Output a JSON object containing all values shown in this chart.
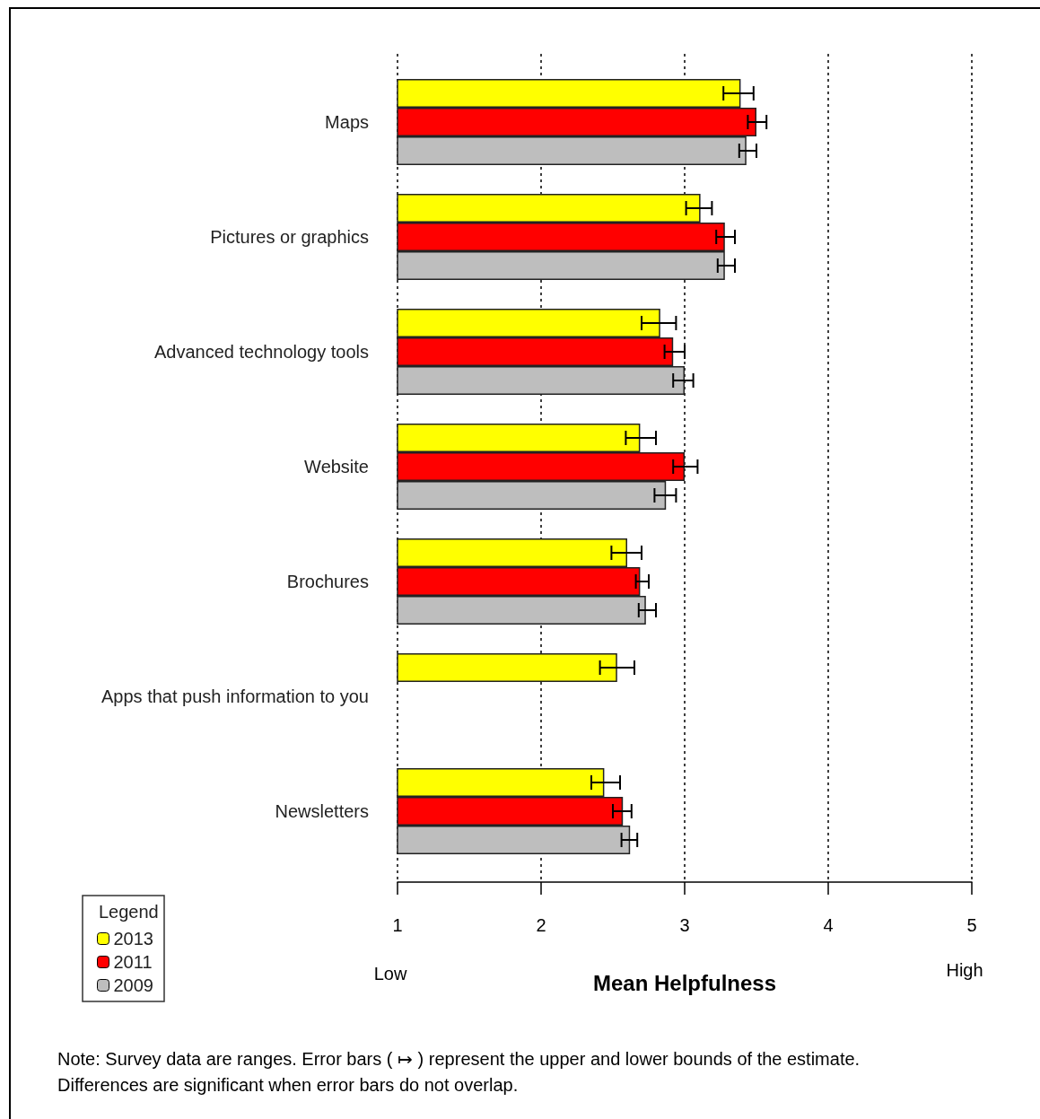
{
  "chart_data": {
    "type": "bar",
    "orientation": "horizontal",
    "xlabel": "Mean Helpfulness",
    "legend_title": "Legend",
    "legend": "bottom left",
    "grid": "x",
    "categories": [
      "Maps",
      "Pictures or graphics",
      "Advanced technology tools",
      "Website",
      "Brochures",
      "Apps that push information to you",
      "Newsletters"
    ],
    "xlim": [
      1,
      5
    ],
    "xticks": [
      1,
      2,
      3,
      4,
      5
    ],
    "series": [
      {
        "name": "2013",
        "color": "#ffff00",
        "values": [
          3.39,
          3.11,
          2.83,
          2.69,
          2.6,
          2.53,
          2.44
        ],
        "errors": [
          [
            3.27,
            3.48
          ],
          [
            3.01,
            3.19
          ],
          [
            2.7,
            2.94
          ],
          [
            2.59,
            2.8
          ],
          [
            2.49,
            2.7
          ],
          [
            2.41,
            2.65
          ],
          [
            2.35,
            2.55
          ]
        ]
      },
      {
        "name": "2011",
        "color": "#ff0000",
        "values": [
          3.5,
          3.28,
          2.92,
          3.0,
          2.69,
          null,
          2.57
        ],
        "errors": [
          [
            3.44,
            3.57
          ],
          [
            3.22,
            3.35
          ],
          [
            2.86,
            3.0
          ],
          [
            2.92,
            3.09
          ],
          [
            2.66,
            2.75
          ],
          null,
          [
            2.5,
            2.63
          ]
        ]
      },
      {
        "name": "2009",
        "color": "#bebebe",
        "values": [
          3.43,
          3.28,
          3.0,
          2.87,
          2.73,
          null,
          2.62
        ],
        "errors": [
          [
            3.38,
            3.5
          ],
          [
            3.23,
            3.35
          ],
          [
            2.92,
            3.06
          ],
          [
            2.79,
            2.94
          ],
          [
            2.68,
            2.8
          ],
          null,
          [
            2.56,
            2.67
          ]
        ]
      }
    ],
    "annotations": [
      "Low",
      "High",
      "Note:  Survey data are ranges.  Error bars ( ↦ ) represent the upper and lower bounds of the estimate. Differences are significant when error bars do not overlap."
    ]
  }
}
